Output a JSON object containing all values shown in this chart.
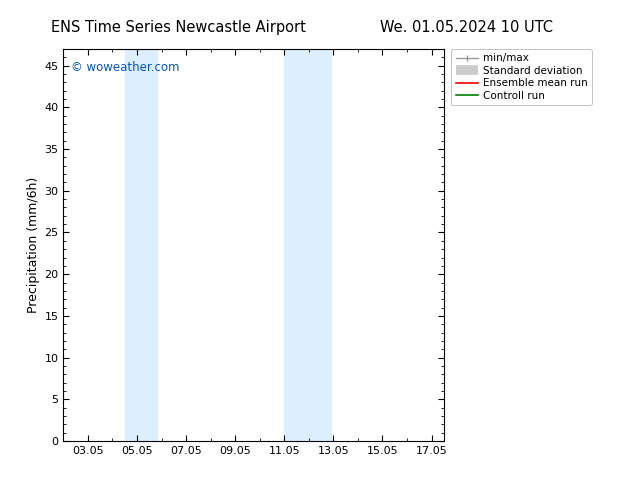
{
  "title_left": "ENS Time Series Newcastle Airport",
  "title_right": "We. 01.05.2024 10 UTC",
  "ylabel": "Precipitation (mm/6h)",
  "ylim": [
    0,
    47
  ],
  "yticks": [
    0,
    5,
    10,
    15,
    20,
    25,
    30,
    35,
    40,
    45
  ],
  "xtick_labels": [
    "03.05",
    "05.05",
    "07.05",
    "09.05",
    "11.05",
    "13.05",
    "15.05",
    "17.05"
  ],
  "xtick_positions": [
    3,
    5,
    7,
    9,
    11,
    13,
    15,
    17
  ],
  "xlim": [
    2.0,
    17.5
  ],
  "shaded_bands": [
    {
      "x_start": 4.5,
      "x_end": 5.8,
      "color": "#ddeeff"
    },
    {
      "x_start": 11.0,
      "x_end": 12.9,
      "color": "#ddeeff"
    }
  ],
  "watermark": "© woweather.com",
  "watermark_color": "#0055cc",
  "bg_color": "#ffffff",
  "plot_bg_color": "#ffffff",
  "tick_color": "#000000",
  "border_color": "#000000",
  "title_fontsize": 10.5,
  "label_fontsize": 9,
  "tick_fontsize": 8,
  "legend_fontsize": 7.5
}
